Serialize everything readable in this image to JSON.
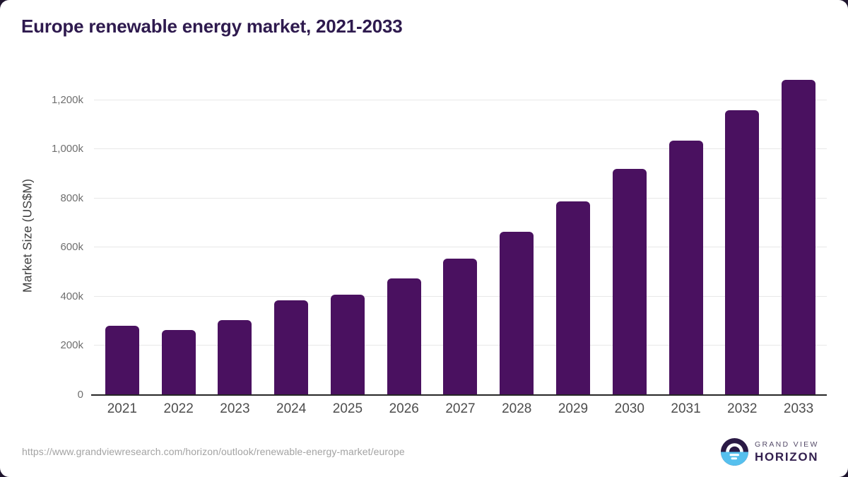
{
  "title": "Europe renewable energy market, 2021-2033",
  "chart_data": {
    "type": "bar",
    "title": "Europe renewable energy market, 2021-2033",
    "categories": [
      "2021",
      "2022",
      "2023",
      "2024",
      "2025",
      "2026",
      "2027",
      "2028",
      "2029",
      "2030",
      "2031",
      "2032",
      "2033"
    ],
    "values": [
      283000,
      264000,
      306000,
      386000,
      409000,
      475000,
      556000,
      663000,
      789000,
      919000,
      1036000,
      1160000,
      1283000
    ],
    "unit": "US$M",
    "xlabel": "",
    "ylabel": "Market Size (US$M)",
    "ylim": [
      0,
      1300000
    ],
    "yticks": [
      {
        "value": 0,
        "label": "0"
      },
      {
        "value": 200000,
        "label": "200k"
      },
      {
        "value": 400000,
        "label": "400k"
      },
      {
        "value": 600000,
        "label": "600k"
      },
      {
        "value": 800000,
        "label": "800k"
      },
      {
        "value": 1000000,
        "label": "1,000k"
      },
      {
        "value": 1200000,
        "label": "1,200k"
      }
    ],
    "grid": true,
    "legend": false,
    "bar_color": "#4a1160"
  },
  "colors": {
    "title_text": "#2e1a4e",
    "bar": "#4a1160",
    "gridline": "#e8e8e8",
    "axis_line": "#262626",
    "ytick_text": "#6f6f6f",
    "xtick_text": "#4d4d4d",
    "source_url_text": "#a3a3a3",
    "page_corner": "#1f152e",
    "logo_top": "#2b1a45",
    "logo_bottom": "#56c0ee",
    "brand_grand_view": "#544a68",
    "brand_horizon": "#33204f"
  },
  "footer": {
    "source_url": "https://www.grandviewresearch.com/horizon/outlook/renewable-energy-market/europe",
    "brand": {
      "line1": "GRAND VIEW",
      "line2": "HORIZON"
    }
  }
}
